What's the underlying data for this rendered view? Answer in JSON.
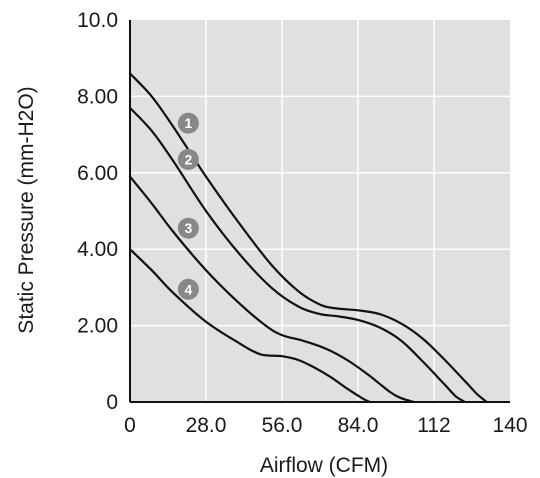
{
  "chart_data": {
    "type": "line",
    "xlabel": "Airflow (CFM)",
    "ylabel": "Static Pressure (mm-H2O)",
    "xlim": [
      0,
      140
    ],
    "ylim": [
      0,
      10
    ],
    "x_ticks": [
      0,
      28,
      56,
      84,
      112,
      140
    ],
    "x_tick_labels": [
      "0",
      "28.0",
      "56.0",
      "84.0",
      "112",
      "140"
    ],
    "y_ticks": [
      0,
      2,
      4,
      6,
      8,
      10
    ],
    "y_tick_labels": [
      "0",
      "2.00",
      "4.00",
      "6.00",
      "8.00",
      "10.0"
    ],
    "grid": true,
    "plot_background": "#e0e0e0",
    "line_color": "#111111",
    "marker_color": "#888888",
    "series": [
      {
        "name": "1",
        "x": [
          0,
          8,
          16,
          28,
          40,
          52,
          62,
          70,
          76,
          84,
          92,
          100,
          108,
          116,
          124,
          128,
          131.4
        ],
        "y": [
          8.6,
          8.0,
          7.2,
          5.9,
          4.7,
          3.6,
          2.9,
          2.55,
          2.45,
          2.4,
          2.3,
          2.05,
          1.65,
          1.1,
          0.5,
          0.2,
          0
        ]
      },
      {
        "name": "2",
        "x": [
          0,
          8,
          16,
          28,
          40,
          52,
          62,
          70,
          76,
          84,
          92,
          100,
          108,
          116,
          120,
          123.4
        ],
        "y": [
          7.7,
          7.1,
          6.3,
          5.0,
          3.9,
          3.0,
          2.5,
          2.3,
          2.25,
          2.15,
          1.95,
          1.6,
          1.05,
          0.45,
          0.15,
          0
        ]
      },
      {
        "name": "3",
        "x": [
          0,
          8,
          16,
          28,
          40,
          50,
          56,
          64,
          72,
          80,
          88,
          96,
          100,
          104.6
        ],
        "y": [
          5.9,
          5.2,
          4.45,
          3.45,
          2.6,
          2.0,
          1.75,
          1.6,
          1.4,
          1.1,
          0.7,
          0.25,
          0.1,
          0
        ]
      },
      {
        "name": "4",
        "x": [
          0,
          8,
          16,
          28,
          40,
          48,
          56,
          62,
          68,
          74,
          80,
          86,
          88.5
        ],
        "y": [
          4.0,
          3.45,
          2.85,
          2.1,
          1.55,
          1.25,
          1.2,
          1.1,
          0.9,
          0.65,
          0.35,
          0.08,
          0
        ]
      }
    ],
    "markers": [
      {
        "label": "1",
        "x": 21.5,
        "y": 7.3
      },
      {
        "label": "2",
        "x": 21.5,
        "y": 6.35
      },
      {
        "label": "3",
        "x": 21.5,
        "y": 4.55
      },
      {
        "label": "4",
        "x": 21.5,
        "y": 2.95
      }
    ]
  }
}
